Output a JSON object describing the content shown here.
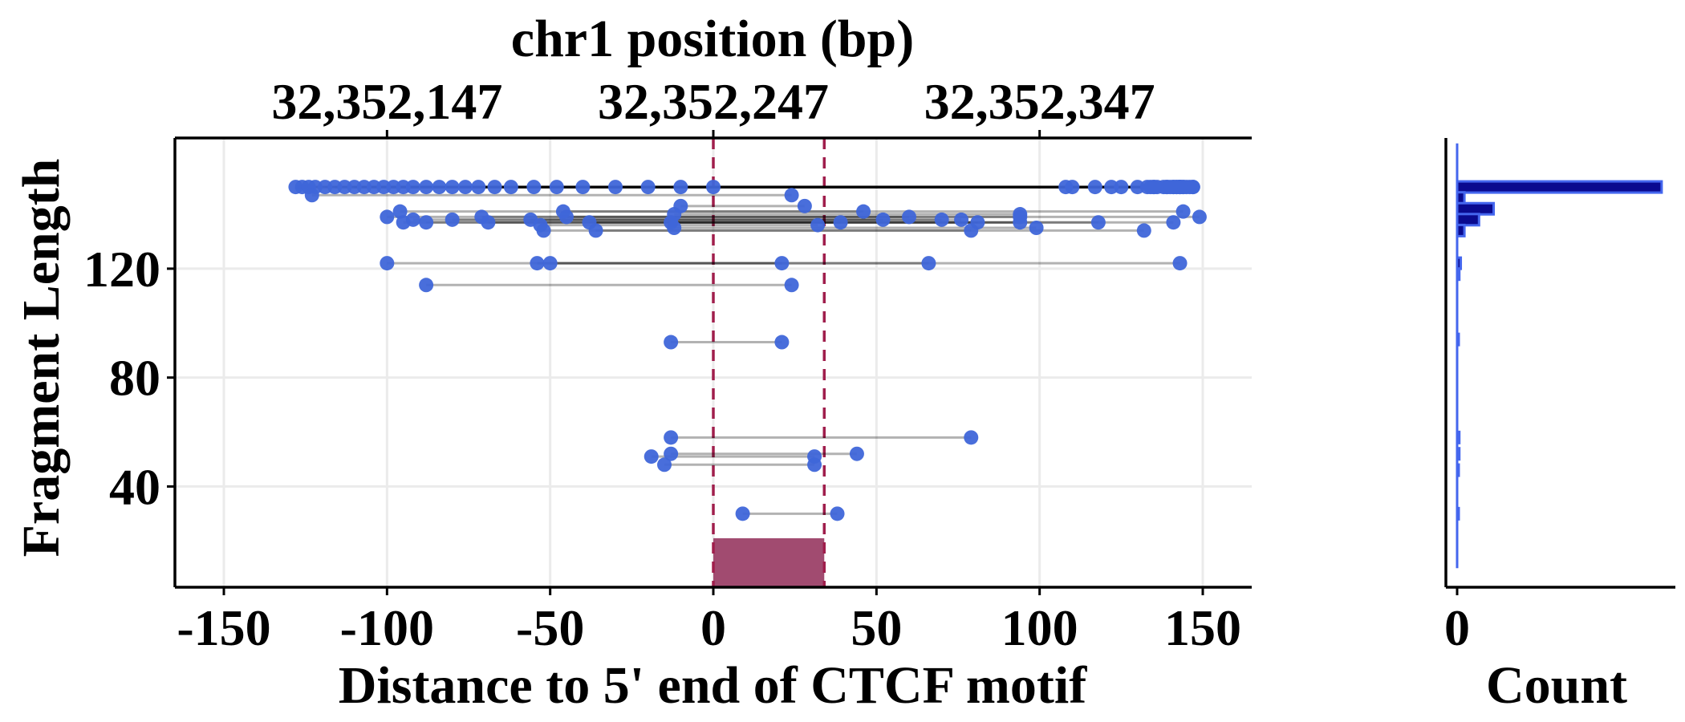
{
  "chart_data": [
    {
      "type": "scatter",
      "subtype": "fragment-segments",
      "title": "",
      "xlabel": "Distance to 5' end of CTCF motif",
      "ylabel": "Fragment Length",
      "top_axis_label": "chr1 position (bp)",
      "xlim": [
        -165,
        165
      ],
      "ylim": [
        3,
        168
      ],
      "x_ticks": [
        -150,
        -100,
        -50,
        0,
        50,
        100,
        150
      ],
      "x_tick_labels": [
        "-150",
        "-100",
        "-50",
        "0",
        "50",
        "100",
        "150"
      ],
      "y_ticks": [
        40,
        80,
        120
      ],
      "y_tick_labels": [
        "40",
        "80",
        "120"
      ],
      "top_ticks": [
        -100,
        0,
        100
      ],
      "top_tick_labels": [
        "32,352,147",
        "32,352,247",
        "32,352,347"
      ],
      "grid": true,
      "motif": {
        "start": 0,
        "end": 34,
        "color": "#a14b70",
        "ymin": 3,
        "ymax": 21
      },
      "point_color": "#3f66d9",
      "segment_color": "#000000",
      "fragments": [
        [
          -128,
          150
        ],
        [
          -126,
          150
        ],
        [
          -124,
          150
        ],
        [
          -122,
          150
        ],
        [
          -119,
          150
        ],
        [
          -116,
          150
        ],
        [
          -113,
          150
        ],
        [
          -110,
          150
        ],
        [
          -107,
          150
        ],
        [
          -104,
          150
        ],
        [
          -101,
          150
        ],
        [
          -98,
          150
        ],
        [
          -95,
          150
        ],
        [
          -92,
          150
        ],
        [
          -88,
          150
        ],
        [
          -84,
          150
        ],
        [
          -80,
          150
        ],
        [
          -76,
          150
        ],
        [
          -72,
          150
        ],
        [
          -67,
          150
        ],
        [
          -62,
          150
        ],
        [
          -55,
          150
        ],
        [
          -48,
          150
        ],
        [
          -40,
          150
        ],
        [
          -30,
          150
        ],
        [
          -20,
          150
        ],
        [
          -10,
          150
        ],
        [
          0,
          150
        ],
        [
          -123,
          147
        ],
        [
          -96,
          141
        ],
        [
          -100,
          139
        ],
        [
          -95,
          137
        ],
        [
          -92,
          138
        ],
        [
          -88,
          137
        ],
        [
          -80,
          138
        ],
        [
          -71,
          139
        ],
        [
          -69,
          137
        ],
        [
          -56,
          138
        ],
        [
          -53,
          136
        ],
        [
          -52,
          134
        ],
        [
          -46,
          141
        ],
        [
          -45,
          139
        ],
        [
          -38,
          137
        ],
        [
          -36,
          134
        ],
        [
          -12,
          140
        ],
        [
          -13,
          137
        ],
        [
          -12,
          135
        ],
        [
          -10,
          143
        ],
        [
          -100,
          122
        ],
        [
          -88,
          114
        ],
        [
          -54,
          122
        ],
        [
          -50,
          122
        ],
        [
          -13,
          93
        ],
        [
          -13,
          58
        ],
        [
          -13,
          52
        ],
        [
          -19,
          51
        ],
        [
          -15,
          48
        ],
        [
          9,
          30
        ]
      ],
      "fragment_ends": [
        145,
        146,
        143,
        144,
        139,
        141,
        143,
        134,
        130,
        138,
        136,
        135,
        144,
        142,
        125,
        117,
        110,
        141,
        122,
        147,
        108,
        139,
        133,
        142,
        135,
        147,
        143,
        140,
        24,
        46,
        60,
        94,
        70,
        39,
        52,
        94,
        81,
        76,
        32,
        79,
        144,
        149,
        118,
        132,
        94,
        141,
        99,
        28,
        143,
        24,
        21,
        66,
        21,
        79,
        44,
        31,
        31,
        38
      ],
      "histogram": {
        "type": "bar",
        "orientation": "horizontal",
        "xlabel": "Count",
        "x_ticks": [
          0
        ],
        "x_tick_labels": [
          "0"
        ],
        "bin_lengths": [
          150,
          146,
          142,
          138,
          134,
          122,
          118,
          94,
          58,
          52,
          46,
          30
        ],
        "counts": [
          28,
          1,
          5,
          3,
          1,
          0.5,
          0.3,
          0.2,
          0.3,
          0.3,
          0.2,
          0.2
        ],
        "xlim": [
          0,
          29
        ],
        "fill": "#0a0a8f",
        "edge": "#4466ee"
      }
    }
  ]
}
